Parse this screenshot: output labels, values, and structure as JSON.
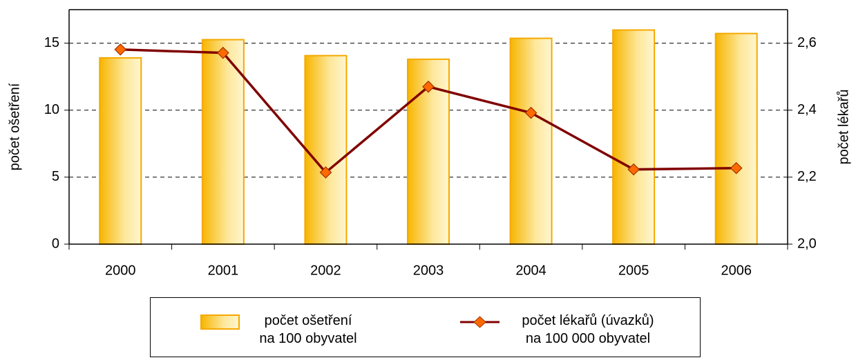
{
  "chart_data": {
    "type": "bar_line",
    "categories": [
      "2000",
      "2001",
      "2002",
      "2003",
      "2004",
      "2005",
      "2006"
    ],
    "series": [
      {
        "name": "počet ošetření\nna 100 obyvatel",
        "color": "#f5a800",
        "values": [
          13.9,
          15.26,
          14.07,
          13.8,
          15.36,
          15.98,
          15.72
        ]
      },
      {
        "name": "počet lékařů (úvazků)\nna 100 000 obyvatel",
        "color": "#800000",
        "axis": "y2",
        "values": [
          2.581,
          2.571,
          2.214,
          2.47,
          2.392,
          2.223,
          2.227
        ]
      }
    ],
    "ylabel": "počet ošetření",
    "y2label": "počet lékařů",
    "ylim": [
      0,
      17.5
    ],
    "yticks": [
      0,
      5,
      10,
      15
    ],
    "y2lim": [
      2.0,
      2.7
    ],
    "y2ticks": [
      {
        "value": 2.0,
        "label": "2,0"
      },
      {
        "value": 2.2,
        "label": "2,2"
      },
      {
        "value": 2.4,
        "label": "2,4"
      },
      {
        "value": 2.6,
        "label": "2,6"
      }
    ],
    "grid": true,
    "legend": "bottom"
  }
}
